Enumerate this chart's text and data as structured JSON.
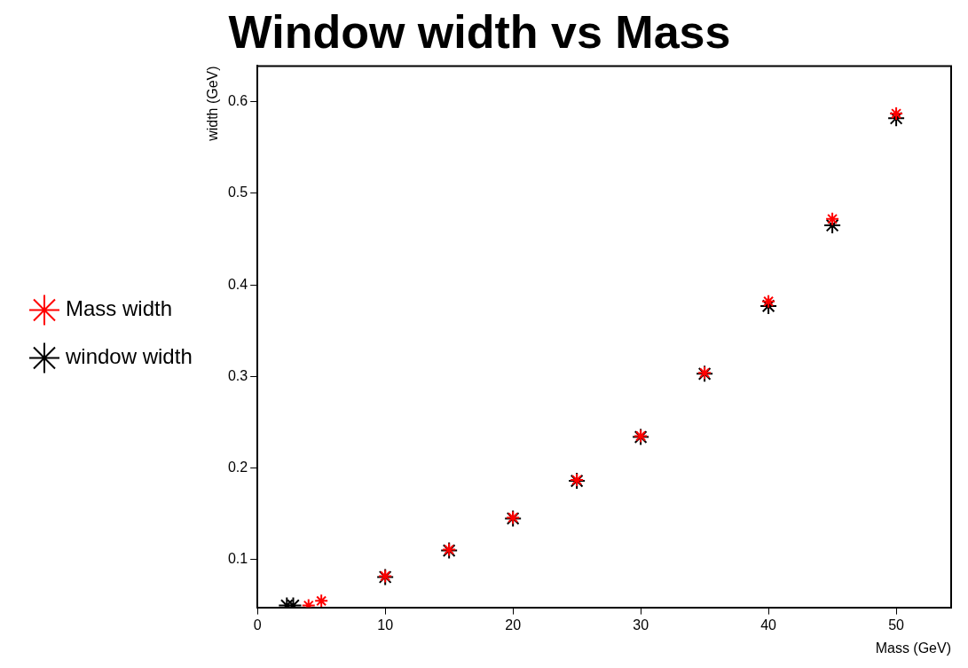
{
  "chart_data": {
    "type": "scatter",
    "title": "Window width vs Mass",
    "xlabel": "Mass (GeV)",
    "ylabel": "width (GeV)",
    "xlim": [
      0,
      54.3
    ],
    "xticks": [
      0,
      10,
      20,
      30,
      40,
      50
    ],
    "ylim": [
      0.048,
      0.639
    ],
    "yticks": [
      0.1,
      0.2,
      0.3,
      0.4,
      0.5,
      0.6
    ],
    "grid": false,
    "legend": "left",
    "marker": "cross",
    "series": [
      {
        "name": "window width",
        "color": "#000000",
        "x": [
          2.3,
          2.8,
          10,
          15,
          20,
          25,
          30,
          35,
          40,
          45,
          50
        ],
        "values": [
          0.05,
          0.05,
          0.081,
          0.11,
          0.145,
          0.186,
          0.234,
          0.303,
          0.377,
          0.465,
          0.582
        ]
      },
      {
        "name": "Mass width",
        "color": "#ff0000",
        "x": [
          4,
          5,
          10,
          15,
          20,
          25,
          30,
          35,
          40,
          45,
          50
        ],
        "values": [
          0.05,
          0.055,
          0.082,
          0.111,
          0.146,
          0.187,
          0.235,
          0.304,
          0.382,
          0.472,
          0.587
        ]
      }
    ]
  }
}
